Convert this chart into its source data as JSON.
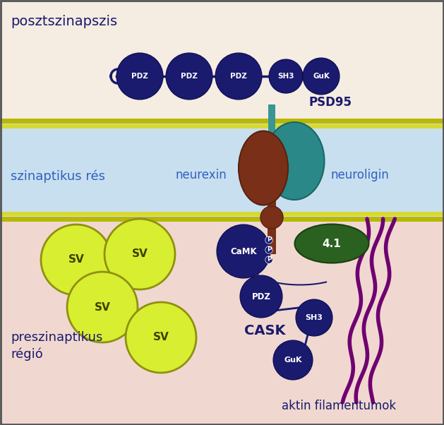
{
  "bg_postsynaptic": "#f5ece2",
  "bg_synaptic_cleft": "#c8dff0",
  "bg_presynaptic": "#f0d8d0",
  "membrane_color_outer": "#c8c820",
  "membrane_color_inner": "#e8e840",
  "dark_blue": "#1a1a6e",
  "teal": "#2a8888",
  "brown": "#7a3018",
  "green_41": "#2a6020",
  "yg_fill": "#d8ee30",
  "yg_edge": "#909010",
  "purple": "#700070",
  "labels": {
    "postsynaptic": "posztszinapszis",
    "synaptic_cleft": "szinaptikus rés",
    "presynaptic": "preszinaptikus\nrégió",
    "neurexin": "neurexin",
    "neuroligin": "neuroligin",
    "psd95": "PSD95",
    "cask": "CASK",
    "actin": "aktin filamentumok"
  }
}
